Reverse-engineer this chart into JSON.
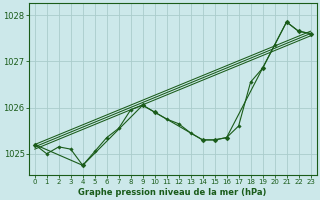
{
  "title": "Graphe pression niveau de la mer (hPa)",
  "bg_color": "#cce8ea",
  "grid_color": "#aacccc",
  "line_color": "#1a5c1a",
  "xlim": [
    -0.5,
    23.5
  ],
  "ylim": [
    1024.55,
    1028.25
  ],
  "yticks": [
    1025,
    1026,
    1027,
    1028
  ],
  "xticks": [
    0,
    1,
    2,
    3,
    4,
    5,
    6,
    7,
    8,
    9,
    10,
    11,
    12,
    13,
    14,
    15,
    16,
    17,
    18,
    19,
    20,
    21,
    22,
    23
  ],
  "series_main": {
    "x": [
      0,
      1,
      2,
      3,
      4,
      5,
      6,
      7,
      8,
      9,
      10,
      11,
      12,
      13,
      14,
      15,
      16,
      17,
      18,
      19,
      20,
      21,
      22,
      23
    ],
    "y": [
      1025.2,
      1025.0,
      1025.15,
      1025.1,
      1024.75,
      1025.05,
      1025.35,
      1025.55,
      1025.95,
      1026.05,
      1025.9,
      1025.75,
      1025.65,
      1025.45,
      1025.3,
      1025.3,
      1025.35,
      1025.6,
      1026.55,
      1026.85,
      1027.35,
      1027.85,
      1027.65,
      1027.6
    ]
  },
  "series_sparse": {
    "x": [
      0,
      4,
      9,
      10,
      14,
      15,
      16,
      19,
      21,
      22,
      23
    ],
    "y": [
      1025.2,
      1024.75,
      1026.05,
      1025.9,
      1025.3,
      1025.3,
      1025.35,
      1026.85,
      1027.85,
      1027.65,
      1027.6
    ]
  },
  "trend_lines": [
    {
      "x": [
        0,
        23
      ],
      "y": [
        1025.1,
        1027.55
      ]
    },
    {
      "x": [
        0,
        23
      ],
      "y": [
        1025.15,
        1027.6
      ]
    },
    {
      "x": [
        0,
        23
      ],
      "y": [
        1025.2,
        1027.65
      ]
    }
  ]
}
